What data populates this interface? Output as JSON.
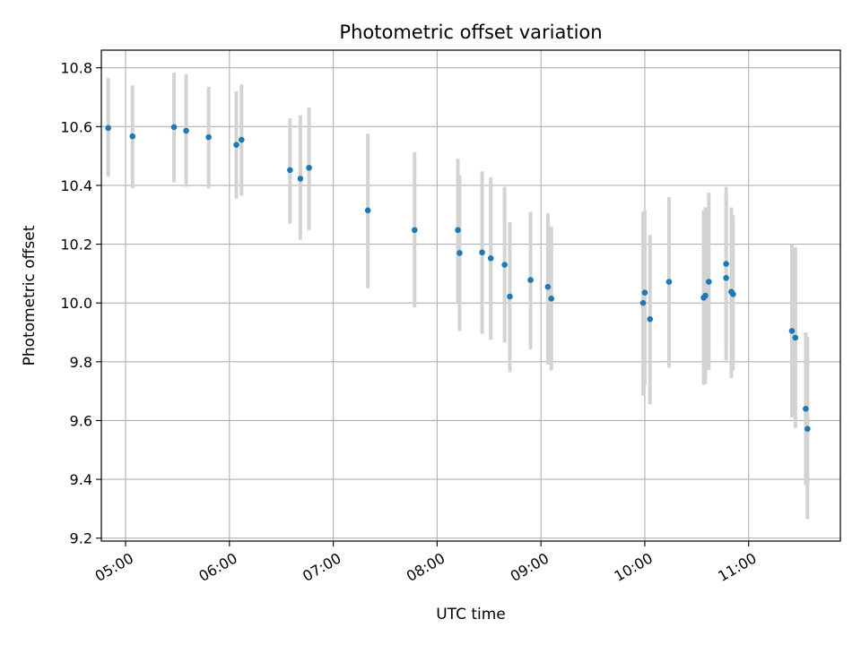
{
  "chart_data": {
    "type": "scatter",
    "title": "Photometric offset variation",
    "xlabel": "UTC time",
    "ylabel": "Photometric offset",
    "x_ticks": [
      "05:00",
      "06:00",
      "07:00",
      "08:00",
      "09:00",
      "10:00",
      "11:00"
    ],
    "y_ticks": [
      "9.2",
      "9.4",
      "9.6",
      "9.8",
      "10.0",
      "10.2",
      "10.4",
      "10.6",
      "10.8"
    ],
    "xlim": [
      "04:46",
      "11:53"
    ],
    "ylim": [
      9.19,
      10.86
    ],
    "grid": true,
    "colors": {
      "point": "#1f77b4",
      "errorbar": "#d3d3d3",
      "grid": "#b0b0b0"
    },
    "points": [
      {
        "x": "04:50",
        "y": 10.595,
        "lo": 10.43,
        "hi": 10.765
      },
      {
        "x": "05:04",
        "y": 10.567,
        "lo": 10.39,
        "hi": 10.74
      },
      {
        "x": "05:28",
        "y": 10.598,
        "lo": 10.41,
        "hi": 10.783
      },
      {
        "x": "05:35",
        "y": 10.586,
        "lo": 10.395,
        "hi": 10.778
      },
      {
        "x": "05:48",
        "y": 10.564,
        "lo": 10.39,
        "hi": 10.736
      },
      {
        "x": "06:04",
        "y": 10.538,
        "lo": 10.355,
        "hi": 10.72
      },
      {
        "x": "06:07",
        "y": 10.555,
        "lo": 10.365,
        "hi": 10.744
      },
      {
        "x": "06:35",
        "y": 10.452,
        "lo": 10.27,
        "hi": 10.628
      },
      {
        "x": "06:41",
        "y": 10.423,
        "lo": 10.215,
        "hi": 10.638
      },
      {
        "x": "06:46",
        "y": 10.46,
        "lo": 10.248,
        "hi": 10.665
      },
      {
        "x": "07:20",
        "y": 10.315,
        "lo": 10.05,
        "hi": 10.576
      },
      {
        "x": "07:47",
        "y": 10.248,
        "lo": 9.985,
        "hi": 10.513
      },
      {
        "x": "08:12",
        "y": 10.248,
        "lo": 10.0,
        "hi": 10.49
      },
      {
        "x": "08:13",
        "y": 10.17,
        "lo": 9.905,
        "hi": 10.435
      },
      {
        "x": "08:26",
        "y": 10.172,
        "lo": 9.895,
        "hi": 10.448
      },
      {
        "x": "08:31",
        "y": 10.152,
        "lo": 9.875,
        "hi": 10.428
      },
      {
        "x": "08:39",
        "y": 10.13,
        "lo": 9.865,
        "hi": 10.395
      },
      {
        "x": "08:42",
        "y": 10.022,
        "lo": 9.765,
        "hi": 10.275
      },
      {
        "x": "08:54",
        "y": 10.078,
        "lo": 9.842,
        "hi": 10.31
      },
      {
        "x": "09:04",
        "y": 10.055,
        "lo": 9.79,
        "hi": 10.305
      },
      {
        "x": "09:06",
        "y": 10.015,
        "lo": 9.77,
        "hi": 10.26
      },
      {
        "x": "09:59",
        "y": 10.0,
        "lo": 9.685,
        "hi": 10.31
      },
      {
        "x": "10:00",
        "y": 10.035,
        "lo": 9.72,
        "hi": 10.315
      },
      {
        "x": "10:03",
        "y": 9.945,
        "lo": 9.655,
        "hi": 10.232
      },
      {
        "x": "10:14",
        "y": 10.072,
        "lo": 9.78,
        "hi": 10.36
      },
      {
        "x": "10:34",
        "y": 10.018,
        "lo": 9.722,
        "hi": 10.315
      },
      {
        "x": "10:35",
        "y": 10.025,
        "lo": 9.725,
        "hi": 10.325
      },
      {
        "x": "10:37",
        "y": 10.072,
        "lo": 9.772,
        "hi": 10.375
      },
      {
        "x": "10:47",
        "y": 10.133,
        "lo": 9.865,
        "hi": 10.395
      },
      {
        "x": "10:47",
        "y": 10.085,
        "lo": 9.805,
        "hi": 10.37
      },
      {
        "x": "10:50",
        "y": 10.038,
        "lo": 9.745,
        "hi": 10.325
      },
      {
        "x": "10:51",
        "y": 10.03,
        "lo": 9.77,
        "hi": 10.298
      },
      {
        "x": "11:25",
        "y": 9.905,
        "lo": 9.61,
        "hi": 10.2
      },
      {
        "x": "11:27",
        "y": 9.882,
        "lo": 9.575,
        "hi": 10.19
      },
      {
        "x": "11:33",
        "y": 9.64,
        "lo": 9.38,
        "hi": 9.9
      },
      {
        "x": "11:34",
        "y": 9.572,
        "lo": 9.265,
        "hi": 9.885
      }
    ]
  }
}
